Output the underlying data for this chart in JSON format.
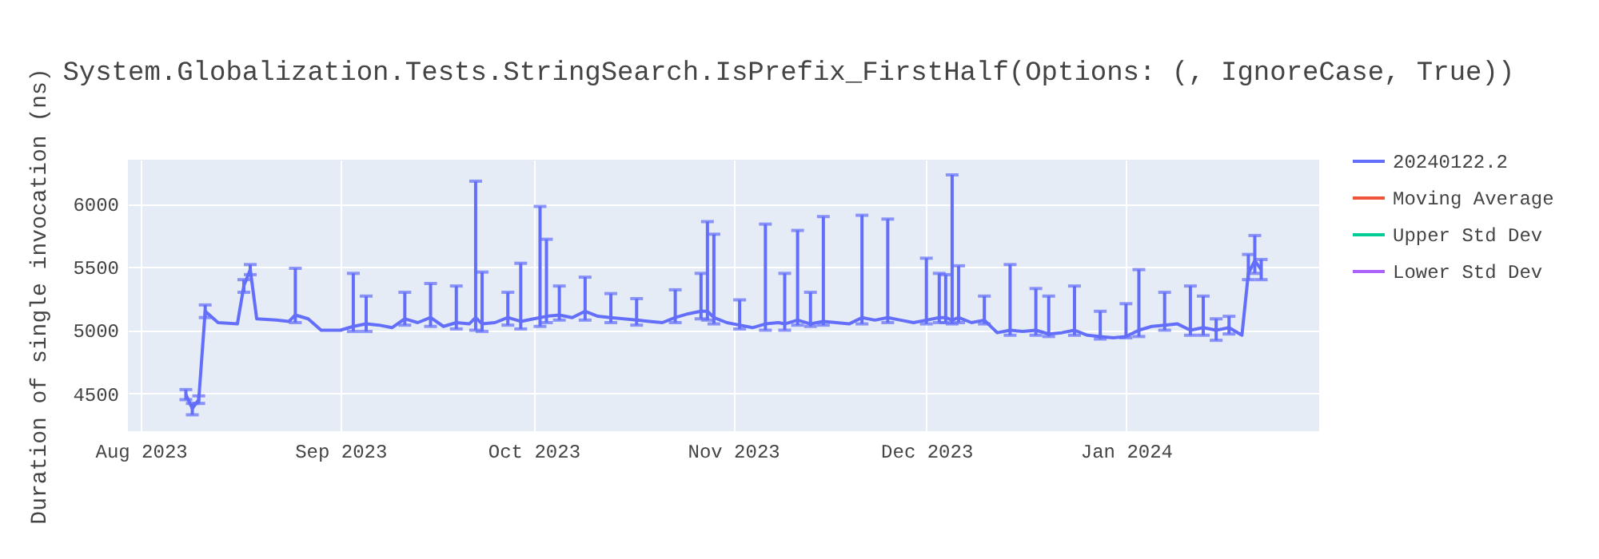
{
  "chart_data": {
    "type": "line",
    "title": "System.Globalization.Tests.StringSearch.IsPrefix_FirstHalf(Options: (, IgnoreCase, True))",
    "ylabel": "Duration of single invocation (ns)",
    "x": [
      "2023-08-08",
      "2023-08-09",
      "2023-08-10",
      "2023-08-11",
      "2023-08-13",
      "2023-08-16",
      "2023-08-17",
      "2023-08-18",
      "2023-08-19",
      "2023-08-22",
      "2023-08-24",
      "2023-08-25",
      "2023-08-27",
      "2023-08-29",
      "2023-09-01",
      "2023-09-03",
      "2023-09-05",
      "2023-09-07",
      "2023-09-09",
      "2023-09-11",
      "2023-09-13",
      "2023-09-15",
      "2023-09-17",
      "2023-09-19",
      "2023-09-21",
      "2023-09-22",
      "2023-09-23",
      "2023-09-25",
      "2023-09-27",
      "2023-09-29",
      "2023-10-01",
      "2023-10-02",
      "2023-10-03",
      "2023-10-05",
      "2023-10-07",
      "2023-10-09",
      "2023-10-11",
      "2023-10-13",
      "2023-10-15",
      "2023-10-17",
      "2023-10-19",
      "2023-10-21",
      "2023-10-23",
      "2023-10-25",
      "2023-10-27",
      "2023-10-28",
      "2023-10-29",
      "2023-10-31",
      "2023-11-02",
      "2023-11-04",
      "2023-11-06",
      "2023-11-08",
      "2023-11-09",
      "2023-11-11",
      "2023-11-13",
      "2023-11-15",
      "2023-11-17",
      "2023-11-19",
      "2023-11-21",
      "2023-11-23",
      "2023-11-25",
      "2023-11-27",
      "2023-11-29",
      "2023-12-01",
      "2023-12-03",
      "2023-12-04",
      "2023-12-05",
      "2023-12-06",
      "2023-12-08",
      "2023-12-10",
      "2023-12-12",
      "2023-12-14",
      "2023-12-16",
      "2023-12-18",
      "2023-12-20",
      "2023-12-22",
      "2023-12-24",
      "2023-12-26",
      "2023-12-28",
      "2023-12-30",
      "2024-01-01",
      "2024-01-03",
      "2024-01-05",
      "2024-01-07",
      "2024-01-09",
      "2024-01-11",
      "2024-01-13",
      "2024-01-15",
      "2024-01-17",
      "2024-01-19",
      "2024-01-20",
      "2024-01-21",
      "2024-01-22"
    ],
    "series": [
      {
        "name": "20240122.2",
        "color": "#636efa",
        "values": [
          4490,
          4380,
          4450,
          5150,
          5060,
          5050,
          5350,
          5480,
          5090,
          5080,
          5070,
          5120,
          5090,
          5000,
          5000,
          5030,
          5050,
          5040,
          5020,
          5090,
          5060,
          5100,
          5030,
          5060,
          5050,
          5100,
          5050,
          5060,
          5100,
          5070,
          5090,
          5100,
          5110,
          5120,
          5100,
          5150,
          5110,
          5100,
          5090,
          5080,
          5070,
          5060,
          5100,
          5130,
          5150,
          5150,
          5100,
          5060,
          5040,
          5020,
          5050,
          5060,
          5050,
          5080,
          5050,
          5070,
          5060,
          5050,
          5100,
          5080,
          5100,
          5080,
          5060,
          5080,
          5100,
          5100,
          5080,
          5100,
          5060,
          5080,
          4980,
          5000,
          4990,
          5000,
          4970,
          4980,
          5000,
          4960,
          4950,
          4940,
          4950,
          5000,
          5030,
          5040,
          5050,
          5000,
          5020,
          5000,
          5020,
          4960,
          5450,
          5550,
          5480
        ],
        "errors": [
          [
            4450,
            4530
          ],
          [
            4330,
            4420
          ],
          [
            4420,
            4480
          ],
          [
            5100,
            5200
          ],
          null,
          null,
          [
            5300,
            5400
          ],
          [
            5440,
            5520
          ],
          null,
          null,
          null,
          [
            5060,
            5490
          ],
          null,
          null,
          null,
          [
            4990,
            5450
          ],
          [
            4990,
            5270
          ],
          null,
          null,
          [
            5040,
            5300
          ],
          null,
          [
            5030,
            5370
          ],
          null,
          [
            5010,
            5350
          ],
          null,
          [
            5000,
            6180
          ],
          [
            4990,
            5460
          ],
          null,
          [
            5040,
            5300
          ],
          [
            5010,
            5530
          ],
          null,
          [
            5030,
            5980
          ],
          [
            5060,
            5720
          ],
          [
            5080,
            5350
          ],
          null,
          [
            5080,
            5420
          ],
          null,
          [
            5060,
            5290
          ],
          null,
          [
            5040,
            5250
          ],
          null,
          null,
          [
            5060,
            5320
          ],
          null,
          [
            5090,
            5450
          ],
          [
            5080,
            5860
          ],
          [
            5050,
            5760
          ],
          null,
          [
            5010,
            5240
          ],
          null,
          [
            5000,
            5840
          ],
          null,
          [
            5000,
            5450
          ],
          [
            5040,
            5790
          ],
          [
            5030,
            5300
          ],
          [
            5040,
            5900
          ],
          null,
          null,
          [
            5050,
            5910
          ],
          null,
          [
            5060,
            5880
          ],
          null,
          null,
          [
            5050,
            5570
          ],
          [
            5060,
            5450
          ],
          [
            5060,
            5440
          ],
          [
            5050,
            6230
          ],
          [
            5060,
            5510
          ],
          null,
          [
            5050,
            5270
          ],
          null,
          [
            4960,
            5520
          ],
          null,
          [
            4960,
            5330
          ],
          [
            4950,
            5270
          ],
          null,
          [
            4960,
            5350
          ],
          null,
          [
            4930,
            5150
          ],
          null,
          [
            4940,
            5210
          ],
          [
            4950,
            5480
          ],
          null,
          [
            5000,
            5300
          ],
          null,
          [
            4960,
            5350
          ],
          [
            4960,
            5270
          ],
          [
            4920,
            5090
          ],
          [
            4970,
            5110
          ],
          null,
          [
            5400,
            5600
          ],
          [
            5450,
            5750
          ],
          [
            5400,
            5560
          ]
        ]
      },
      {
        "name": "Moving Average",
        "color": "#ef553b",
        "values": [
          null,
          null,
          null,
          null,
          null,
          null,
          null,
          null,
          null,
          null,
          null,
          null,
          null,
          null,
          null,
          null,
          null,
          null,
          null,
          null,
          null,
          null,
          null,
          null,
          null,
          null,
          null,
          null,
          null,
          null,
          null,
          null,
          null,
          null,
          null,
          null,
          null,
          null,
          null,
          null,
          null,
          null,
          null,
          null,
          null,
          null,
          null,
          null,
          null,
          null,
          null,
          null,
          null,
          null,
          null,
          null,
          null,
          null,
          null,
          null,
          null,
          null,
          null,
          null,
          null,
          null,
          null,
          null,
          null,
          null,
          null,
          null,
          null,
          null,
          null,
          null,
          null,
          null,
          null,
          null,
          null,
          null,
          null,
          null,
          null,
          null,
          null,
          null,
          null,
          null,
          null,
          null,
          null
        ]
      },
      {
        "name": "Upper Std Dev",
        "color": "#00cc96",
        "values": [
          null,
          null,
          null,
          null,
          null,
          null,
          null,
          null,
          null,
          null,
          null,
          null,
          null,
          null,
          null,
          null,
          null,
          null,
          null,
          null,
          null,
          null,
          null,
          null,
          null,
          null,
          null,
          null,
          null,
          null,
          null,
          null,
          null,
          null,
          null,
          null,
          null,
          null,
          null,
          null,
          null,
          null,
          null,
          null,
          null,
          null,
          null,
          null,
          null,
          null,
          null,
          null,
          null,
          null,
          null,
          null,
          null,
          null,
          null,
          null,
          null,
          null,
          null,
          null,
          null,
          null,
          null,
          null,
          null,
          null,
          null,
          null,
          null,
          null,
          null,
          null,
          null,
          null,
          null,
          null,
          null,
          null,
          null,
          null,
          null,
          null,
          null,
          null,
          null,
          null,
          null,
          null,
          null
        ]
      },
      {
        "name": "Lower Std Dev",
        "color": "#ab63fa",
        "values": [
          null,
          null,
          null,
          null,
          null,
          null,
          null,
          null,
          null,
          null,
          null,
          null,
          null,
          null,
          null,
          null,
          null,
          null,
          null,
          null,
          null,
          null,
          null,
          null,
          null,
          null,
          null,
          null,
          null,
          null,
          null,
          null,
          null,
          null,
          null,
          null,
          null,
          null,
          null,
          null,
          null,
          null,
          null,
          null,
          null,
          null,
          null,
          null,
          null,
          null,
          null,
          null,
          null,
          null,
          null,
          null,
          null,
          null,
          null,
          null,
          null,
          null,
          null,
          null,
          null,
          null,
          null,
          null,
          null,
          null,
          null,
          null,
          null,
          null,
          null,
          null,
          null,
          null,
          null,
          null,
          null,
          null,
          null,
          null,
          null,
          null,
          null,
          null,
          null,
          null,
          null,
          null,
          null
        ]
      }
    ],
    "xlim": [
      "2023-07-30",
      "2024-01-31"
    ],
    "xticks": [
      {
        "value": "2023-08-01",
        "label": "Aug 2023"
      },
      {
        "value": "2023-09-01",
        "label": "Sep 2023"
      },
      {
        "value": "2023-10-01",
        "label": "Oct 2023"
      },
      {
        "value": "2023-11-01",
        "label": "Nov 2023"
      },
      {
        "value": "2023-12-01",
        "label": "Dec 2023"
      },
      {
        "value": "2024-01-01",
        "label": "Jan 2024"
      }
    ],
    "ylim": [
      4200,
      6350
    ],
    "yticks": [
      4500,
      5000,
      5500,
      6000
    ],
    "grid": true,
    "legend": "right"
  }
}
